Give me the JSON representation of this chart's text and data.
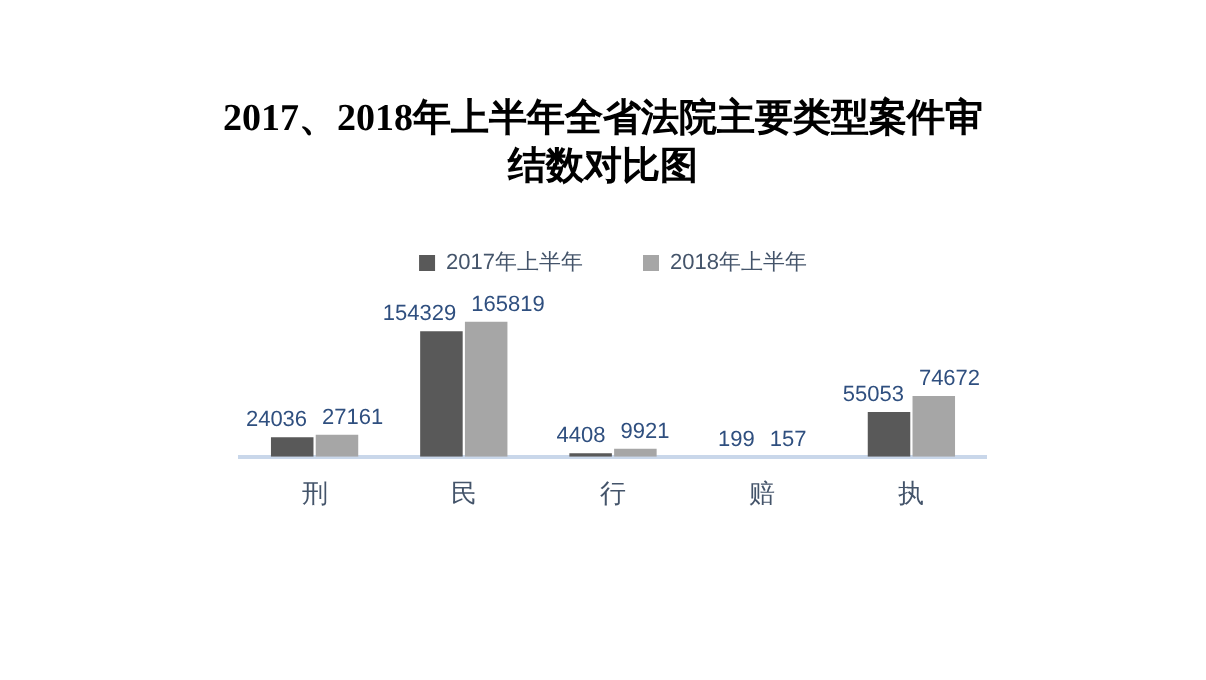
{
  "chart_data": {
    "type": "bar",
    "title": "2017、2018年上半年全省法院主要类型案件审结数对比图",
    "categories": [
      "刑",
      "民",
      "行",
      "赔",
      "执"
    ],
    "series": [
      {
        "name": "2017年上半年",
        "color": "#595959",
        "values": [
          24036,
          154329,
          4408,
          199,
          55053
        ]
      },
      {
        "name": "2018年上半年",
        "color": "#a6a6a6",
        "values": [
          27161,
          165819,
          9921,
          157,
          74672
        ]
      }
    ],
    "data_labels": true,
    "legend": "top"
  }
}
